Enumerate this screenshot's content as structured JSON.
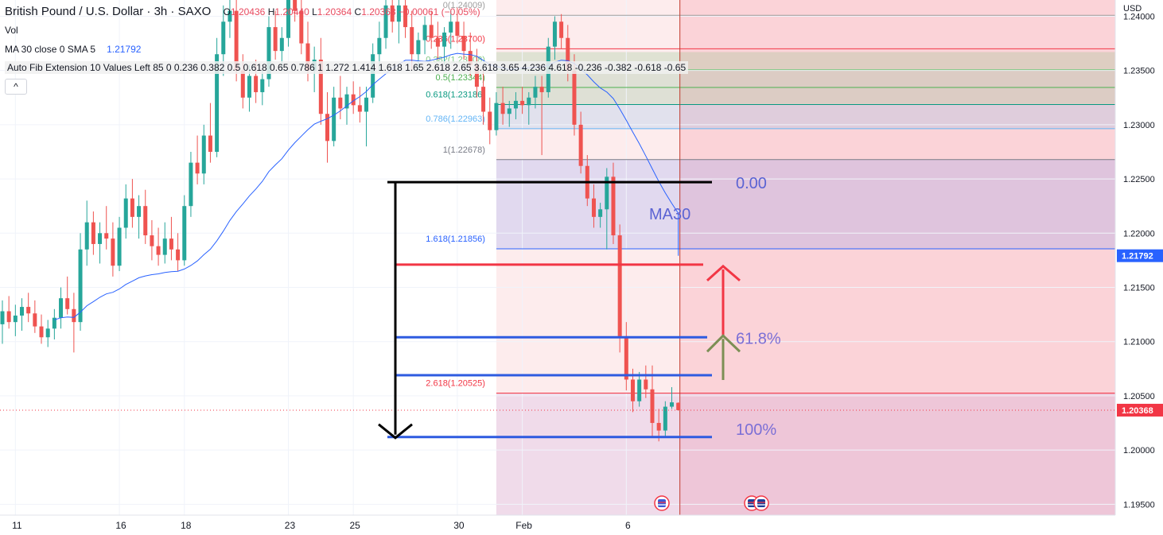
{
  "header": {
    "title": "British Pound / U.S. Dollar · 3h · SAXO",
    "ohlc": {
      "o_label": "O",
      "o": "1.20436",
      "h_label": "H",
      "h": "1.20440",
      "l_label": "L",
      "l": "1.20364",
      "c_label": "C",
      "c": "1.20368",
      "change": "−0.00061 (−0.05%)"
    },
    "vol": "Vol",
    "ma_label": "MA 30 close 0 SMA 5",
    "ma_value": "1.21792",
    "fib_label": "Auto Fib Extension 10 Values Left 85 0 0.236 0.382 0.5 0.618 0.65 0.786 1 1.272 1.414 1.618 1.65 2.618 2.65 3.618 3.65 4.236 4.618 -0.236 -0.382 -0.618 -0.65",
    "collapse": "^"
  },
  "colors": {
    "up": "#26a69a",
    "down": "#ef5350",
    "ma": "#2962ff"
  },
  "chart_data": {
    "type": "candlestick",
    "currency": "USD",
    "ylim": [
      1.194,
      1.2415
    ],
    "y_ticks": [
      "1.24000",
      "1.23500",
      "1.23000",
      "1.22500",
      "1.22000",
      "1.21500",
      "1.21000",
      "1.20500",
      "1.20000",
      "1.19500"
    ],
    "x_ticks": [
      {
        "label": "11",
        "i": 2
      },
      {
        "label": "16",
        "i": 18
      },
      {
        "label": "18",
        "i": 28
      },
      {
        "label": "23",
        "i": 44
      },
      {
        "label": "25",
        "i": 54
      },
      {
        "label": "30",
        "i": 70
      },
      {
        "label": "Feb",
        "i": 80
      },
      {
        "label": "6",
        "i": 96
      }
    ],
    "candles": [
      [
        1.2116,
        1.2138,
        1.2098,
        1.2128
      ],
      [
        1.2128,
        1.2142,
        1.2112,
        1.2118
      ],
      [
        1.2118,
        1.2134,
        1.2105,
        1.2124
      ],
      [
        1.2124,
        1.214,
        1.211,
        1.2132
      ],
      [
        1.2132,
        1.2145,
        1.2118,
        1.2126
      ],
      [
        1.2126,
        1.2138,
        1.2108,
        1.2114
      ],
      [
        1.2114,
        1.2125,
        1.2098,
        1.2104
      ],
      [
        1.2104,
        1.212,
        1.2095,
        1.2112
      ],
      [
        1.2112,
        1.213,
        1.2102,
        1.2122
      ],
      [
        1.2122,
        1.215,
        1.2112,
        1.214
      ],
      [
        1.214,
        1.216,
        1.2125,
        1.213
      ],
      [
        1.213,
        1.2145,
        1.209,
        1.2118
      ],
      [
        1.2118,
        1.22,
        1.211,
        1.2185
      ],
      [
        1.2185,
        1.223,
        1.217,
        1.221
      ],
      [
        1.221,
        1.222,
        1.218,
        1.219
      ],
      [
        1.219,
        1.221,
        1.2172,
        1.22
      ],
      [
        1.22,
        1.2225,
        1.2185,
        1.2195
      ],
      [
        1.2195,
        1.221,
        1.216,
        1.217
      ],
      [
        1.217,
        1.2215,
        1.2165,
        1.2205
      ],
      [
        1.2205,
        1.2245,
        1.2195,
        1.2232
      ],
      [
        1.2232,
        1.225,
        1.2205,
        1.2215
      ],
      [
        1.2215,
        1.2235,
        1.2195,
        1.2225
      ],
      [
        1.2225,
        1.224,
        1.219,
        1.2198
      ],
      [
        1.2198,
        1.2212,
        1.2175,
        1.2188
      ],
      [
        1.2188,
        1.2205,
        1.217,
        1.218
      ],
      [
        1.218,
        1.221,
        1.2172,
        1.2195
      ],
      [
        1.2195,
        1.2215,
        1.2175,
        1.2185
      ],
      [
        1.2185,
        1.22,
        1.2165,
        1.2175
      ],
      [
        1.2175,
        1.2235,
        1.217,
        1.2225
      ],
      [
        1.2225,
        1.2275,
        1.2215,
        1.2265
      ],
      [
        1.2265,
        1.229,
        1.2245,
        1.2255
      ],
      [
        1.2255,
        1.23,
        1.2245,
        1.229
      ],
      [
        1.229,
        1.232,
        1.2265,
        1.2275
      ],
      [
        1.2275,
        1.238,
        1.227,
        1.2365
      ],
      [
        1.2365,
        1.241,
        1.2345,
        1.2395
      ],
      [
        1.2395,
        1.242,
        1.238,
        1.2405
      ],
      [
        1.2405,
        1.2415,
        1.234,
        1.235
      ],
      [
        1.235,
        1.2365,
        1.2315,
        1.2325
      ],
      [
        1.2325,
        1.2355,
        1.2312,
        1.2345
      ],
      [
        1.2345,
        1.236,
        1.232,
        1.233
      ],
      [
        1.233,
        1.235,
        1.2318,
        1.2342
      ],
      [
        1.2342,
        1.24,
        1.2335,
        1.239
      ],
      [
        1.239,
        1.2405,
        1.236,
        1.2368
      ],
      [
        1.2368,
        1.239,
        1.235,
        1.238
      ],
      [
        1.238,
        1.244,
        1.2372,
        1.243
      ],
      [
        1.243,
        1.245,
        1.2395,
        1.2405
      ],
      [
        1.2405,
        1.2425,
        1.2365,
        1.2375
      ],
      [
        1.2375,
        1.2395,
        1.234,
        1.235
      ],
      [
        1.235,
        1.2372,
        1.233,
        1.236
      ],
      [
        1.236,
        1.238,
        1.23,
        1.231
      ],
      [
        1.231,
        1.233,
        1.2265,
        1.2285
      ],
      [
        1.2285,
        1.2335,
        1.228,
        1.2325
      ],
      [
        1.2325,
        1.2345,
        1.2305,
        1.2315
      ],
      [
        1.2315,
        1.2335,
        1.23,
        1.2328
      ],
      [
        1.2328,
        1.234,
        1.231,
        1.2318
      ],
      [
        1.2318,
        1.2335,
        1.2302,
        1.2312
      ],
      [
        1.2312,
        1.2335,
        1.228,
        1.2325
      ],
      [
        1.2325,
        1.2375,
        1.232,
        1.2365
      ],
      [
        1.2365,
        1.2395,
        1.235,
        1.238
      ],
      [
        1.238,
        1.242,
        1.237,
        1.241
      ],
      [
        1.241,
        1.2435,
        1.2385,
        1.2395
      ],
      [
        1.2395,
        1.242,
        1.2375,
        1.241
      ],
      [
        1.241,
        1.2425,
        1.238,
        1.239
      ],
      [
        1.239,
        1.2405,
        1.235,
        1.2365
      ],
      [
        1.2365,
        1.2385,
        1.235,
        1.2378
      ],
      [
        1.2378,
        1.24,
        1.2365,
        1.2392
      ],
      [
        1.2392,
        1.2405,
        1.237,
        1.238
      ],
      [
        1.238,
        1.2395,
        1.236,
        1.2372
      ],
      [
        1.2372,
        1.239,
        1.2355,
        1.2385
      ],
      [
        1.2385,
        1.2405,
        1.237,
        1.2395
      ],
      [
        1.2395,
        1.2408,
        1.2375,
        1.2382
      ],
      [
        1.2382,
        1.2395,
        1.236,
        1.2368
      ],
      [
        1.2368,
        1.2385,
        1.2345,
        1.2355
      ],
      [
        1.2355,
        1.237,
        1.2325,
        1.2335
      ],
      [
        1.2335,
        1.235,
        1.23,
        1.2312
      ],
      [
        1.2312,
        1.2325,
        1.2282,
        1.2295
      ],
      [
        1.2295,
        1.233,
        1.229,
        1.232
      ],
      [
        1.232,
        1.2335,
        1.23,
        1.231
      ],
      [
        1.231,
        1.2322,
        1.2298,
        1.2315
      ],
      [
        1.2315,
        1.233,
        1.2305,
        1.2322
      ],
      [
        1.2322,
        1.2335,
        1.231,
        1.2318
      ],
      [
        1.2318,
        1.233,
        1.23,
        1.2325
      ],
      [
        1.2325,
        1.2345,
        1.2315,
        1.2335
      ],
      [
        1.2335,
        1.2345,
        1.2272,
        1.233
      ],
      [
        1.233,
        1.238,
        1.2325,
        1.2372
      ],
      [
        1.2372,
        1.24,
        1.236,
        1.2395
      ],
      [
        1.2395,
        1.2402,
        1.237,
        1.238
      ],
      [
        1.238,
        1.2392,
        1.234,
        1.235
      ],
      [
        1.235,
        1.2365,
        1.229,
        1.23
      ],
      [
        1.23,
        1.2312,
        1.2255,
        1.2262
      ],
      [
        1.2262,
        1.2272,
        1.2225,
        1.2232
      ],
      [
        1.2232,
        1.2245,
        1.2205,
        1.2215
      ],
      [
        1.2215,
        1.2228,
        1.2205,
        1.2222
      ],
      [
        1.2222,
        1.226,
        1.2185,
        1.2252
      ],
      [
        1.2252,
        1.2265,
        1.219,
        1.2198
      ],
      [
        1.2198,
        1.2208,
        1.209,
        1.2105
      ],
      [
        1.2105,
        1.2118,
        1.2055,
        1.2065
      ],
      [
        1.2065,
        1.2075,
        1.2035,
        1.2045
      ],
      [
        1.2045,
        1.2072,
        1.204,
        1.2065
      ],
      [
        1.2065,
        1.2078,
        1.2048,
        1.2056
      ],
      [
        1.2056,
        1.2078,
        1.2012,
        1.2025
      ],
      [
        1.2025,
        1.2038,
        1.2008,
        1.2018
      ],
      [
        1.2018,
        1.2045,
        1.2012,
        1.204
      ],
      [
        1.204,
        1.2058,
        1.2038,
        1.2044
      ],
      [
        1.20436,
        1.2044,
        1.20364,
        1.20368
      ]
    ],
    "ma": {
      "name": "MA30",
      "value": 1.21792
    },
    "fib_levels": [
      {
        "label": "0(1.24009)",
        "value": 1.24009,
        "color": "#9e9e9e"
      },
      {
        "label": "0.236(1.23700)",
        "value": 1.237,
        "color": "#f23645"
      },
      {
        "label": "0.382(1.23508)",
        "value": 1.23508,
        "color": "#81c784"
      },
      {
        "label": "0.5(1.23344)",
        "value": 1.23344,
        "color": "#4caf50"
      },
      {
        "label": "0.618(1.23186)",
        "value": 1.23186,
        "color": "#089981"
      },
      {
        "label": "0.786(1.22963)",
        "value": 1.22963,
        "color": "#64b5f6"
      },
      {
        "label": "1(1.22678)",
        "value": 1.22678,
        "color": "#787b86"
      },
      {
        "label": "1.618(1.21856)",
        "value": 1.21856,
        "color": "#2962ff"
      },
      {
        "label": "2.618(1.20525)",
        "value": 1.20525,
        "color": "#f23645"
      }
    ],
    "annotations": {
      "zero": "0.00",
      "ma30": "MA30",
      "p618": "61.8%",
      "p100": "100%",
      "level_zero": 1.2247,
      "level_red": 1.2171,
      "level_618": 1.2104,
      "level_2618": 1.2069,
      "level_100": 1.2012
    },
    "price_labels": [
      {
        "label": "1.21792",
        "value": 1.21792,
        "color": "#2962ff"
      },
      {
        "label": "1.20368",
        "value": 1.20368,
        "color": "#f23645"
      }
    ]
  }
}
